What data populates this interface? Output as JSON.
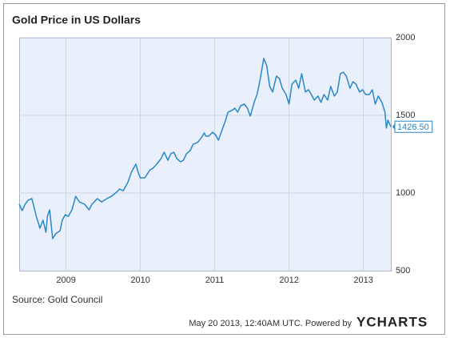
{
  "chart_data": {
    "type": "line",
    "title": "Gold Price in US Dollars",
    "source": "Source: Gold Council",
    "footer_note": "May 20 2013, 12:40AM UTC.  Powered by",
    "brand": "YCHARTS",
    "x": [
      2008.37,
      2008.41,
      2008.45,
      2008.49,
      2008.54,
      2008.56,
      2008.6,
      2008.65,
      2008.69,
      2008.73,
      2008.75,
      2008.78,
      2008.82,
      2008.86,
      2008.92,
      2008.95,
      2008.99,
      2009.03,
      2009.08,
      2009.13,
      2009.18,
      2009.25,
      2009.31,
      2009.35,
      2009.42,
      2009.48,
      2009.55,
      2009.61,
      2009.68,
      2009.72,
      2009.77,
      2009.83,
      2009.88,
      2009.94,
      2009.97,
      2010.0,
      2010.06,
      2010.13,
      2010.17,
      2010.22,
      2010.28,
      2010.32,
      2010.37,
      2010.41,
      2010.45,
      2010.49,
      2010.54,
      2010.58,
      2010.62,
      2010.67,
      2010.71,
      2010.77,
      2010.82,
      2010.86,
      2010.88,
      2010.92,
      2010.97,
      2011.01,
      2011.05,
      2011.1,
      2011.14,
      2011.18,
      2011.23,
      2011.27,
      2011.31,
      2011.35,
      2011.4,
      2011.44,
      2011.48,
      2011.53,
      2011.57,
      2011.61,
      2011.66,
      2011.7,
      2011.74,
      2011.78,
      2011.83,
      2011.87,
      2011.91,
      2011.96,
      2012.0,
      2012.04,
      2012.09,
      2012.13,
      2012.17,
      2012.22,
      2012.26,
      2012.3,
      2012.34,
      2012.39,
      2012.43,
      2012.47,
      2012.52,
      2012.56,
      2012.61,
      2012.65,
      2012.69,
      2012.73,
      2012.77,
      2012.82,
      2012.86,
      2012.9,
      2012.95,
      2012.99,
      2013.03,
      2013.08,
      2013.12,
      2013.16,
      2013.2,
      2013.25,
      2013.29,
      2013.31,
      2013.33,
      2013.37
    ],
    "series": [
      {
        "name": "Gold Price",
        "color": "#2a87c8",
        "values": [
          928,
          887,
          928,
          954,
          964,
          928,
          850,
          773,
          825,
          747,
          850,
          892,
          706,
          737,
          758,
          825,
          861,
          850,
          892,
          979,
          943,
          928,
          892,
          928,
          964,
          943,
          964,
          979,
          1005,
          1026,
          1015,
          1067,
          1134,
          1186,
          1134,
          1098,
          1098,
          1149,
          1160,
          1186,
          1222,
          1263,
          1211,
          1253,
          1263,
          1222,
          1201,
          1211,
          1253,
          1273,
          1314,
          1325,
          1356,
          1387,
          1366,
          1366,
          1392,
          1376,
          1340,
          1407,
          1459,
          1521,
          1531,
          1546,
          1521,
          1562,
          1572,
          1546,
          1495,
          1583,
          1634,
          1727,
          1866,
          1820,
          1686,
          1650,
          1753,
          1737,
          1675,
          1634,
          1572,
          1701,
          1727,
          1675,
          1768,
          1650,
          1665,
          1634,
          1598,
          1624,
          1583,
          1634,
          1598,
          1686,
          1624,
          1650,
          1768,
          1778,
          1753,
          1675,
          1717,
          1701,
          1650,
          1665,
          1634,
          1634,
          1665,
          1572,
          1624,
          1583,
          1521,
          1418,
          1469,
          1426.5
        ],
        "value_labels": [
          null,
          null,
          null,
          null,
          null,
          null,
          null,
          null,
          null,
          null,
          null,
          null,
          null,
          null,
          null,
          null,
          null,
          null,
          null,
          null,
          null,
          null,
          null,
          null,
          null,
          null,
          null,
          null,
          null,
          null,
          null,
          null,
          null,
          null,
          null,
          null,
          null,
          null,
          null,
          null,
          null,
          null,
          null,
          null,
          null,
          null,
          null,
          null,
          null,
          null,
          null,
          null,
          null,
          null,
          null,
          null,
          null,
          null,
          null,
          null,
          null,
          null,
          null,
          null,
          null,
          null,
          null,
          null,
          null,
          null,
          null,
          null,
          null,
          null,
          null,
          null,
          null,
          null,
          null,
          null,
          null,
          null,
          null,
          null,
          null,
          null,
          null,
          null,
          null,
          null,
          null,
          null,
          null,
          null,
          null,
          null,
          null,
          null,
          null,
          null,
          null,
          null,
          null,
          null,
          null,
          null,
          null,
          null,
          null,
          null,
          null,
          null,
          null,
          "1426.50"
        ]
      }
    ],
    "xlim": [
      2008.37,
      2013.37
    ],
    "xticks": [
      2009,
      2010,
      2011,
      2012,
      2013
    ],
    "ylim": [
      500,
      2000
    ],
    "yticks": [
      500,
      1000,
      1500,
      2000
    ],
    "grid": true
  }
}
